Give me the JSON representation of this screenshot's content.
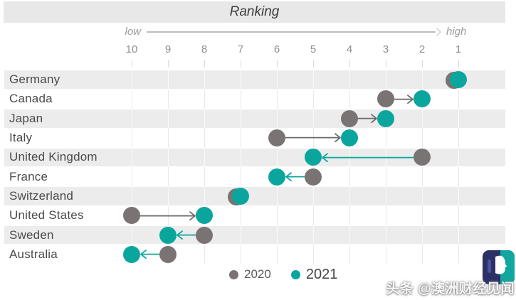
{
  "header": {
    "title": "Ranking",
    "low_label": "low",
    "high_label": "high"
  },
  "chart_data": {
    "type": "dumbbell",
    "title": "Ranking",
    "x_axis": {
      "ticks": [
        10,
        9,
        8,
        7,
        6,
        5,
        4,
        3,
        2,
        1
      ],
      "low_label": "low",
      "high_label": "high",
      "direction": "rank 10 (low) at left to rank 1 (high) at right"
    },
    "categories": [
      "Germany",
      "Canada",
      "Japan",
      "Italy",
      "United Kingdom",
      "France",
      "Switzerland",
      "United States",
      "Sweden",
      "Australia"
    ],
    "series": [
      {
        "name": "2020",
        "color": "#7a7373",
        "values": [
          1,
          3,
          4,
          6,
          2,
          5,
          7,
          10,
          8,
          9
        ]
      },
      {
        "name": "2021",
        "color": "#0aa69e",
        "values": [
          1,
          2,
          3,
          4,
          5,
          6,
          7,
          8,
          9,
          10
        ]
      }
    ],
    "legend_position": "bottom",
    "grid": true,
    "arrow_rule": "arrow points from 2020 rank to 2021 rank; gray when moving right (improved), teal when moving left (declined)"
  },
  "legend": {
    "items": [
      {
        "label": "2020",
        "color": "#7a7373"
      },
      {
        "label": "2021",
        "color": "#0aa69e"
      }
    ]
  },
  "watermark": {
    "text": "头条 @澳洲财经见闻"
  },
  "colors": {
    "teal": "#0aa69e",
    "gray_point": "#7a7373",
    "arrow_gray": "#6f6969",
    "band": "#ececec",
    "header_band": "#e8e8e8",
    "grid_on_white": "#e9e9e9",
    "grid_on_band": "#fafafa",
    "axis_text": "#8e8e8e",
    "label_text": "#4a4a4a",
    "logo_navy": "#2b3166",
    "logo_teal": "#12a6a0"
  }
}
